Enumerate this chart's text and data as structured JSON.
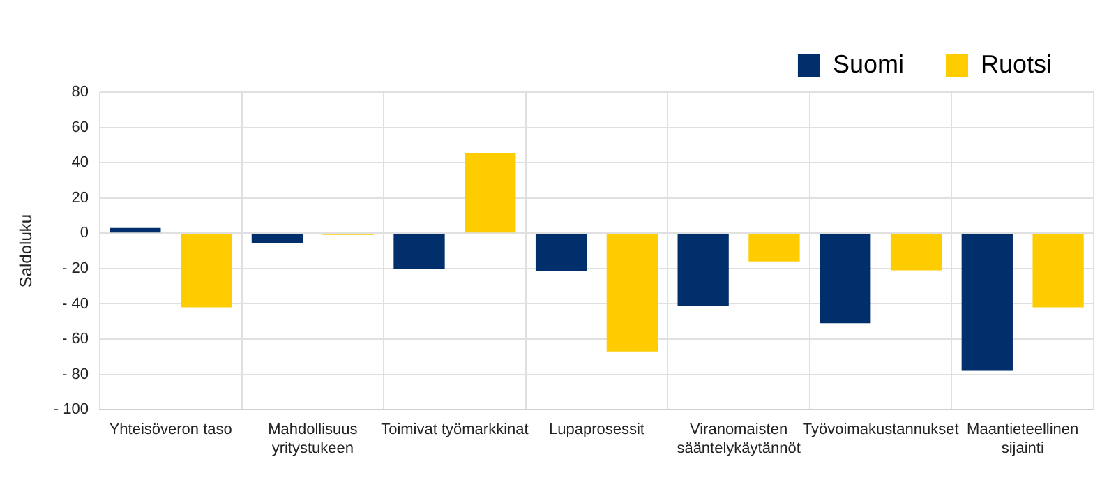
{
  "chart_data": {
    "type": "bar",
    "ylabel": "Saldoluku",
    "categories": [
      "Yhteisöveron taso",
      "Mahdollisuus yritystukeen",
      "Toimivat työmarkkinat",
      "Lupaprosessit",
      "Viranomaisten sääntelykäytännöt",
      "Työvoimakustannukset",
      "Maantieteellinen sijainti"
    ],
    "series": [
      {
        "name": "Suomi",
        "color": "#002f6c",
        "values": [
          3,
          -5.5,
          -20,
          -21.5,
          -41,
          -51,
          -78
        ]
      },
      {
        "name": "Ruotsi",
        "color": "#ffcc00",
        "values": [
          -42,
          -1,
          45.5,
          -67,
          -16,
          -21,
          -42
        ]
      }
    ],
    "ylim": [
      -100,
      80
    ],
    "yticks": [
      {
        "value": -100,
        "label": "- 100"
      },
      {
        "value": -80,
        "label": "- 80"
      },
      {
        "value": -60,
        "label": "- 60"
      },
      {
        "value": -40,
        "label": "- 40"
      },
      {
        "value": -20,
        "label": "- 20"
      },
      0,
      20,
      40,
      60,
      80
    ],
    "grid": true,
    "legend": "top right"
  }
}
